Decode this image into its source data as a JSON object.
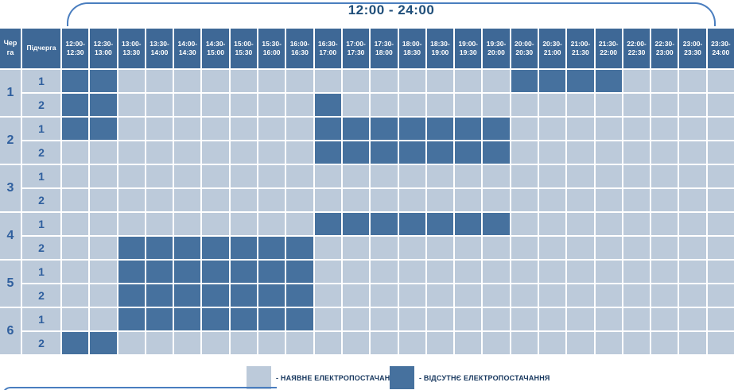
{
  "title": "12:00 - 24:00",
  "colors": {
    "available_cell": "#bccada",
    "absent_cell": "#46719e",
    "header_bg": "#3e6896",
    "accent_line": "#4a7ebf",
    "title_text": "#1f4e79",
    "number_text": "#2f5f9e",
    "legend_text": "#17375e"
  },
  "legend": {
    "items": [
      {
        "swatch": "available",
        "label": "- НАЯВНЕ ЕЛЕКТРОПОСТАЧАННЯ"
      },
      {
        "swatch": "absent",
        "label": "- ВІДСУТНЄ ЕЛЕКТРОПОСТАЧАННЯ"
      }
    ]
  },
  "chart_data": {
    "type": "heatmap",
    "title": "12:00 - 24:00",
    "queue_header": "Черга",
    "subqueue_header": "Підчерга",
    "slots": [
      [
        "12:00",
        "12:30"
      ],
      [
        "12:30",
        "13:00"
      ],
      [
        "13:00",
        "13:30"
      ],
      [
        "13:30",
        "14:00"
      ],
      [
        "14:00",
        "14:30"
      ],
      [
        "14:30",
        "15:00"
      ],
      [
        "15:00",
        "15:30"
      ],
      [
        "15:30",
        "16:00"
      ],
      [
        "16:00",
        "16:30"
      ],
      [
        "16:30",
        "17:00"
      ],
      [
        "17:00",
        "17:30"
      ],
      [
        "17:30",
        "18:00"
      ],
      [
        "18:00",
        "18:30"
      ],
      [
        "18:30",
        "19:00"
      ],
      [
        "19:00",
        "19:30"
      ],
      [
        "19:30",
        "20:00"
      ],
      [
        "20:00",
        "20:30"
      ],
      [
        "20:30",
        "21:00"
      ],
      [
        "21:00",
        "21:30"
      ],
      [
        "21:30",
        "22:00"
      ],
      [
        "22:00",
        "22:30"
      ],
      [
        "22:30",
        "23:00"
      ],
      [
        "23:00",
        "23:30"
      ],
      [
        "23:30",
        "24:00"
      ]
    ],
    "rows": [
      {
        "queue": "1",
        "subqueue": "1",
        "outages": [
          1,
          1,
          0,
          0,
          0,
          0,
          0,
          0,
          0,
          0,
          0,
          0,
          0,
          0,
          0,
          0,
          1,
          1,
          1,
          1,
          0,
          0,
          0,
          0
        ]
      },
      {
        "queue": "1",
        "subqueue": "2",
        "outages": [
          1,
          1,
          0,
          0,
          0,
          0,
          0,
          0,
          0,
          1,
          0,
          0,
          0,
          0,
          0,
          0,
          0,
          0,
          0,
          0,
          0,
          0,
          0,
          0
        ]
      },
      {
        "queue": "2",
        "subqueue": "1",
        "outages": [
          1,
          1,
          0,
          0,
          0,
          0,
          0,
          0,
          0,
          1,
          1,
          1,
          1,
          1,
          1,
          1,
          0,
          0,
          0,
          0,
          0,
          0,
          0,
          0
        ]
      },
      {
        "queue": "2",
        "subqueue": "2",
        "outages": [
          0,
          0,
          0,
          0,
          0,
          0,
          0,
          0,
          0,
          1,
          1,
          1,
          1,
          1,
          1,
          1,
          0,
          0,
          0,
          0,
          0,
          0,
          0,
          0
        ]
      },
      {
        "queue": "3",
        "subqueue": "1",
        "outages": [
          0,
          0,
          0,
          0,
          0,
          0,
          0,
          0,
          0,
          0,
          0,
          0,
          0,
          0,
          0,
          0,
          0,
          0,
          0,
          0,
          0,
          0,
          0,
          0
        ]
      },
      {
        "queue": "3",
        "subqueue": "2",
        "outages": [
          0,
          0,
          0,
          0,
          0,
          0,
          0,
          0,
          0,
          0,
          0,
          0,
          0,
          0,
          0,
          0,
          0,
          0,
          0,
          0,
          0,
          0,
          0,
          0
        ]
      },
      {
        "queue": "4",
        "subqueue": "1",
        "outages": [
          0,
          0,
          0,
          0,
          0,
          0,
          0,
          0,
          0,
          1,
          1,
          1,
          1,
          1,
          1,
          1,
          0,
          0,
          0,
          0,
          0,
          0,
          0,
          0
        ]
      },
      {
        "queue": "4",
        "subqueue": "2",
        "outages": [
          0,
          0,
          1,
          1,
          1,
          1,
          1,
          1,
          1,
          0,
          0,
          0,
          0,
          0,
          0,
          0,
          0,
          0,
          0,
          0,
          0,
          0,
          0,
          0
        ]
      },
      {
        "queue": "5",
        "subqueue": "1",
        "outages": [
          0,
          0,
          1,
          1,
          1,
          1,
          1,
          1,
          1,
          0,
          0,
          0,
          0,
          0,
          0,
          0,
          0,
          0,
          0,
          0,
          0,
          0,
          0,
          0
        ]
      },
      {
        "queue": "5",
        "subqueue": "2",
        "outages": [
          0,
          0,
          1,
          1,
          1,
          1,
          1,
          1,
          1,
          0,
          0,
          0,
          0,
          0,
          0,
          0,
          0,
          0,
          0,
          0,
          0,
          0,
          0,
          0
        ]
      },
      {
        "queue": "6",
        "subqueue": "1",
        "outages": [
          0,
          0,
          1,
          1,
          1,
          1,
          1,
          1,
          1,
          0,
          0,
          0,
          0,
          0,
          0,
          0,
          0,
          0,
          0,
          0,
          0,
          0,
          0,
          0
        ]
      },
      {
        "queue": "6",
        "subqueue": "2",
        "outages": [
          1,
          1,
          0,
          0,
          0,
          0,
          0,
          0,
          0,
          0,
          0,
          0,
          0,
          0,
          0,
          0,
          0,
          0,
          0,
          0,
          0,
          0,
          0,
          0
        ]
      }
    ]
  }
}
